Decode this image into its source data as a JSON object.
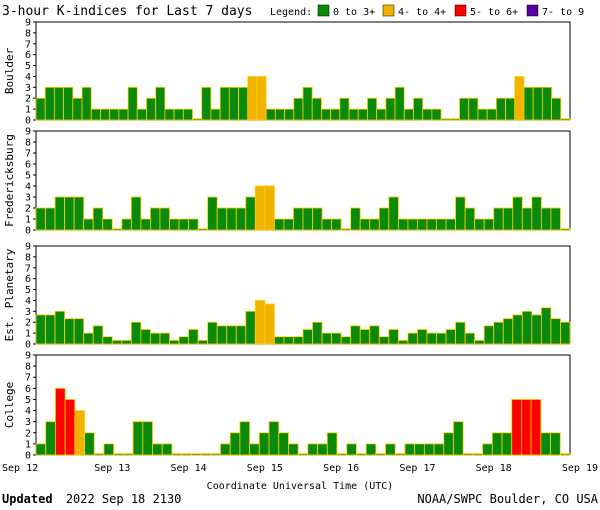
{
  "header": {
    "title": "3-hour K-indices for Last 7 days",
    "legend_label": "Legend:",
    "legend": [
      {
        "label": "0 to 3+",
        "color": "#0a8a0a"
      },
      {
        "label": "4- to 4+",
        "color": "#f0b400"
      },
      {
        "label": "5- to 6+",
        "color": "#ff0000"
      },
      {
        "label": "7- to 9",
        "color": "#5a00a0"
      }
    ]
  },
  "footer": {
    "updated_label": "Updated",
    "updated_value": "2022 Sep 18 2130",
    "source": "NOAA/SWPC Boulder, CO USA",
    "xlabel": "Coordinate Universal Time (UTC)"
  },
  "chart_data": {
    "type": "bar",
    "x_tick_labels": [
      "Sep 12",
      "Sep 13",
      "Sep 14",
      "Sep 15",
      "Sep 16",
      "Sep 17",
      "Sep 18",
      "Sep 19"
    ],
    "y_ticks": [
      "0",
      "1",
      "2",
      "3",
      "4",
      "5",
      "6",
      "7",
      "8",
      "9"
    ],
    "ylim": [
      0,
      9
    ],
    "bar_colors": {
      "green": "#0a8a0a",
      "yellow": "#f0b400",
      "red": "#ff0000",
      "outline": "#ffd000"
    },
    "panels": [
      {
        "name": "Boulder",
        "values": [
          2,
          3,
          3,
          3,
          2,
          3,
          1,
          1,
          1,
          1,
          3,
          1,
          2,
          3,
          1,
          1,
          1,
          0,
          3,
          1,
          3,
          3,
          3,
          4,
          4,
          1,
          1,
          1,
          2,
          3,
          2,
          1,
          1,
          2,
          1,
          1,
          2,
          1,
          2,
          3,
          1,
          2,
          1,
          1,
          0,
          0,
          2,
          2,
          1,
          1,
          2,
          2,
          4,
          3,
          3,
          3,
          2,
          0
        ]
      },
      {
        "name": "Fredericksburg",
        "values": [
          2,
          2,
          3,
          3,
          3,
          1,
          2,
          1,
          0,
          1,
          3,
          1,
          2,
          2,
          1,
          1,
          1,
          0,
          3,
          2,
          2,
          2,
          3,
          4,
          4,
          1,
          1,
          2,
          2,
          2,
          1,
          1,
          0,
          2,
          1,
          1,
          2,
          3,
          1,
          1,
          1,
          1,
          1,
          1,
          3,
          2,
          1,
          1,
          2,
          2,
          3,
          2,
          3,
          2,
          2,
          0
        ]
      },
      {
        "name": "Est. Planetary",
        "values": [
          2.67,
          2.67,
          3,
          2.33,
          2.33,
          1,
          1.67,
          0.67,
          0.33,
          0.33,
          2,
          1.33,
          1,
          1,
          0.33,
          0.67,
          1.33,
          0.33,
          2,
          1.67,
          1.67,
          1.67,
          3,
          4,
          3.67,
          0.67,
          0.67,
          0.67,
          1.33,
          2,
          1,
          1,
          0.67,
          1.67,
          1.33,
          1.67,
          0.67,
          1.33,
          0.33,
          1,
          1.33,
          1,
          1,
          1.33,
          2,
          1,
          0.33,
          1.67,
          2,
          2.33,
          2.67,
          3,
          2.67,
          3.33,
          2.33,
          2
        ]
      },
      {
        "name": "College",
        "values": [
          1,
          3,
          6,
          5,
          4,
          2,
          0,
          1,
          0,
          0,
          3,
          3,
          1,
          1,
          0,
          0,
          0,
          0,
          0,
          1,
          2,
          3,
          1,
          2,
          3,
          2,
          1,
          0,
          1,
          1,
          2,
          0,
          1,
          0,
          1,
          0,
          1,
          0,
          1,
          1,
          1,
          1,
          2,
          3,
          0,
          0,
          1,
          2,
          2,
          5,
          5,
          5,
          2,
          2,
          0
        ]
      }
    ]
  }
}
